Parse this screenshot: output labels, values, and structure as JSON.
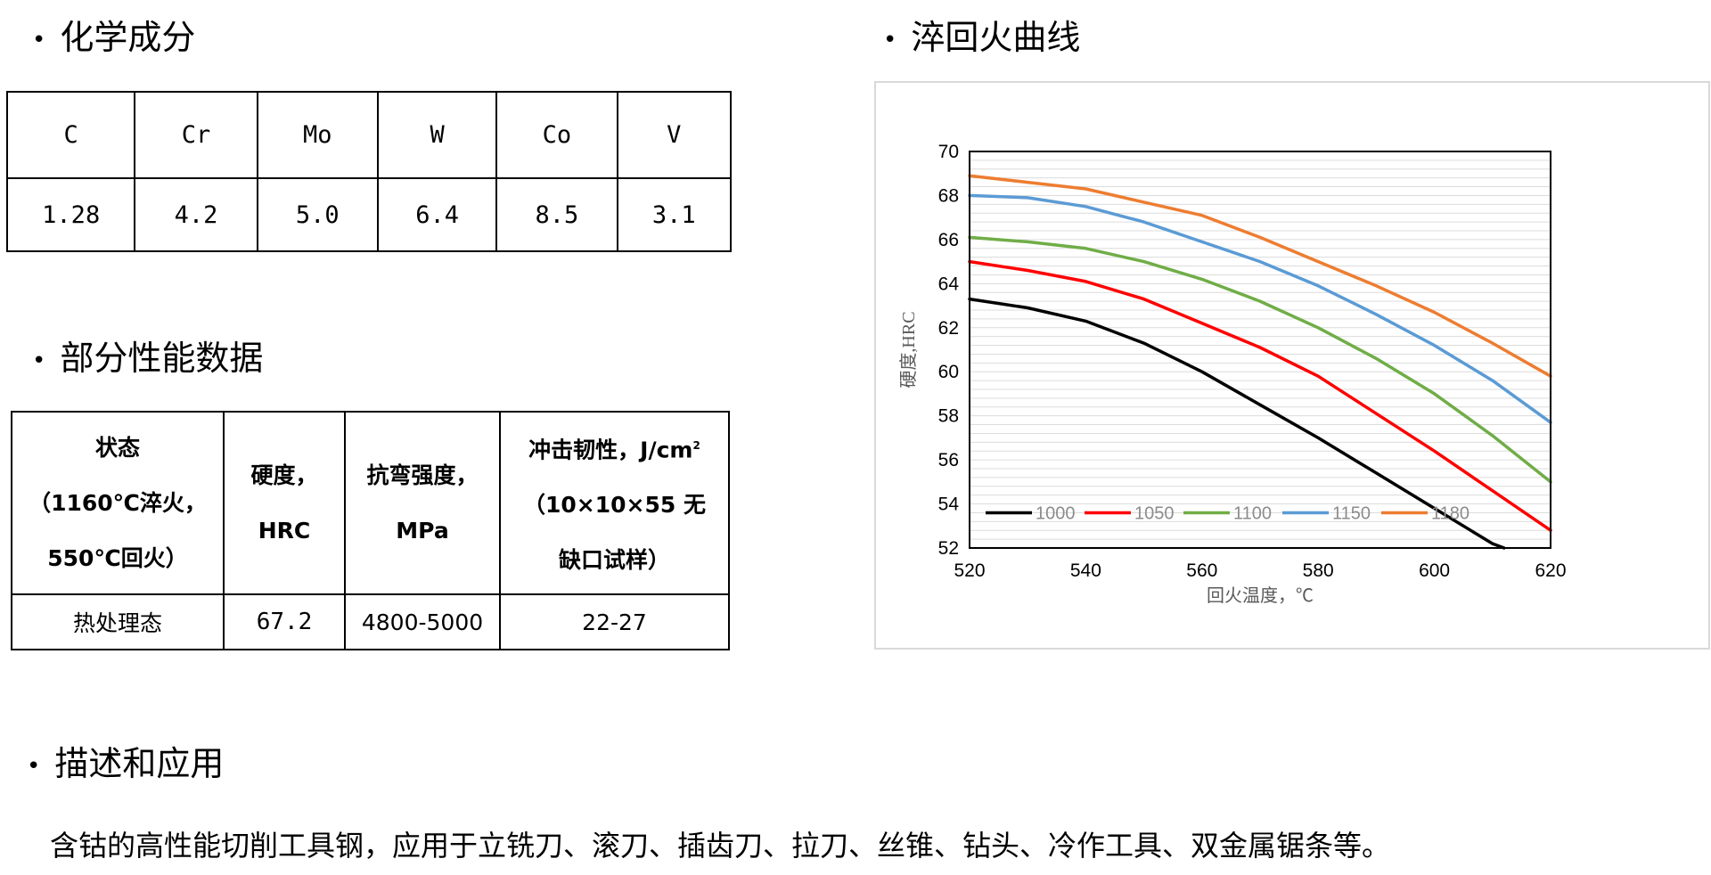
{
  "sections": {
    "chemistry": "化学成分",
    "properties": "部分性能数据",
    "tempering": "淬回火曲线",
    "description": "描述和应用"
  },
  "bullet": "•",
  "composition": {
    "elements": [
      "C",
      "Cr",
      "Mo",
      "W",
      "Co",
      "V"
    ],
    "values": [
      "1.28",
      "4.2",
      "5.0",
      "6.4",
      "8.5",
      "3.1"
    ]
  },
  "properties": {
    "headers": {
      "state": [
        "状态",
        "（1160℃淬火，",
        "550℃回火）"
      ],
      "hardness": [
        "硬度，",
        "HRC"
      ],
      "bending": [
        "抗弯强度，",
        "MPa"
      ],
      "impact_prefix": "冲击韧性，J/cm",
      "impact_sup": "2",
      "impact_rest": [
        "（10×10×55 无",
        "缺口试样）"
      ]
    },
    "row": {
      "state": "热处理态",
      "hardness": "67.2",
      "bending": "4800-5000",
      "impact": "22-27"
    }
  },
  "chart_data": {
    "type": "line",
    "xlabel": "回火温度，℃",
    "ylabel": "硬度,HRC",
    "xlim": [
      520,
      620
    ],
    "ylim": [
      52,
      70
    ],
    "xticks": [
      520,
      540,
      560,
      580,
      600,
      620
    ],
    "yticks": [
      52,
      54,
      56,
      58,
      60,
      62,
      64,
      66,
      68,
      70
    ],
    "grid": true,
    "legend_position": "bottom-left",
    "series": [
      {
        "name": "1000",
        "color": "#000000",
        "x": [
          520,
          530,
          540,
          550,
          560,
          570,
          580,
          590,
          600,
          610,
          612
        ],
        "y": [
          63.3,
          62.9,
          62.3,
          61.3,
          60.0,
          58.5,
          57.0,
          55.4,
          53.8,
          52.2,
          51.9
        ]
      },
      {
        "name": "1050",
        "color": "#ff0000",
        "x": [
          520,
          530,
          540,
          550,
          560,
          570,
          580,
          590,
          600,
          610,
          620
        ],
        "y": [
          65.0,
          64.6,
          64.1,
          63.3,
          62.2,
          61.1,
          59.8,
          58.1,
          56.4,
          54.6,
          52.8
        ]
      },
      {
        "name": "1100",
        "color": "#70ad47",
        "x": [
          520,
          530,
          540,
          550,
          560,
          570,
          580,
          590,
          600,
          610,
          620
        ],
        "y": [
          66.1,
          65.9,
          65.6,
          65.0,
          64.2,
          63.2,
          62.0,
          60.6,
          59.0,
          57.1,
          55.0
        ]
      },
      {
        "name": "1150",
        "color": "#5b9bd5",
        "x": [
          520,
          530,
          540,
          550,
          560,
          570,
          580,
          590,
          600,
          610,
          620
        ],
        "y": [
          68.0,
          67.9,
          67.5,
          66.8,
          65.9,
          65.0,
          63.9,
          62.6,
          61.2,
          59.6,
          57.7
        ]
      },
      {
        "name": "1180",
        "color": "#ed7d31",
        "x": [
          520,
          530,
          540,
          550,
          560,
          570,
          580,
          590,
          600,
          610,
          620
        ],
        "y": [
          68.9,
          68.6,
          68.3,
          67.7,
          67.1,
          66.1,
          65.0,
          63.9,
          62.7,
          61.3,
          59.8
        ]
      }
    ]
  },
  "description_text": "含钴的高性能切削工具钢，应用于立铣刀、滚刀、插齿刀、拉刀、丝锥、钻头、冷作工具、双金属锯条等。"
}
